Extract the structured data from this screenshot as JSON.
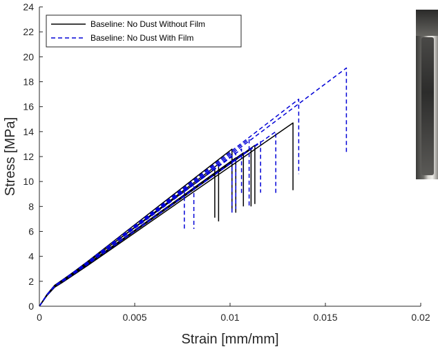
{
  "chart_data": {
    "type": "line",
    "xlabel": "Strain [mm/mm]",
    "ylabel": "Stress [MPa]",
    "xlim": [
      0,
      0.02
    ],
    "ylim": [
      0,
      24
    ],
    "xticks": [
      0,
      0.005,
      0.01,
      0.015,
      0.02
    ],
    "xtick_labels": [
      "0",
      "0.005",
      "0.01",
      "0.015",
      "0.02"
    ],
    "yticks": [
      0,
      2,
      4,
      6,
      8,
      10,
      12,
      14,
      16,
      18,
      20,
      22,
      24
    ],
    "ytick_labels": [
      "0",
      "2",
      "4",
      "6",
      "8",
      "10",
      "12",
      "14",
      "16",
      "18",
      "20",
      "22",
      "24"
    ],
    "grid": false,
    "legend_position": "top-left",
    "series": [
      {
        "name": "Baseline: No Dust Without Film",
        "style": "solid",
        "color": "#000000",
        "curves": [
          {
            "peak_strain": 0.0101,
            "peak_stress": 12.6,
            "drop_stress": 7.7,
            "slope_factor": 1.03
          },
          {
            "peak_strain": 0.0092,
            "peak_stress": 11.0,
            "drop_stress": 7.1,
            "slope_factor": 1.05
          },
          {
            "peak_strain": 0.0094,
            "peak_stress": 11.4,
            "drop_stress": 6.8,
            "slope_factor": 1.01
          },
          {
            "peak_strain": 0.0103,
            "peak_stress": 11.9,
            "drop_stress": 7.5,
            "slope_factor": 0.99
          },
          {
            "peak_strain": 0.0107,
            "peak_stress": 12.3,
            "drop_stress": 8.0,
            "slope_factor": 0.98
          },
          {
            "peak_strain": 0.0111,
            "peak_stress": 12.6,
            "drop_stress": 8.0,
            "slope_factor": 0.97
          },
          {
            "peak_strain": 0.0113,
            "peak_stress": 12.9,
            "drop_stress": 8.2,
            "slope_factor": 0.98
          },
          {
            "peak_strain": 0.0133,
            "peak_stress": 14.7,
            "drop_stress": 9.3,
            "slope_factor": 0.95
          }
        ]
      },
      {
        "name": "Baseline: No Dust With Film",
        "style": "dashed",
        "color": "#0000d6",
        "curves": [
          {
            "peak_strain": 0.0076,
            "peak_stress": 9.3,
            "drop_stress": 6.2,
            "slope_factor": 1.04
          },
          {
            "peak_strain": 0.0081,
            "peak_stress": 9.8,
            "drop_stress": 6.2,
            "slope_factor": 1.03
          },
          {
            "peak_strain": 0.0101,
            "peak_stress": 12.0,
            "drop_stress": 7.4,
            "slope_factor": 1.0
          },
          {
            "peak_strain": 0.0103,
            "peak_stress": 12.3,
            "drop_stress": 7.8,
            "slope_factor": 1.01
          },
          {
            "peak_strain": 0.0106,
            "peak_stress": 12.6,
            "drop_stress": 8.9,
            "slope_factor": 1.0
          },
          {
            "peak_strain": 0.011,
            "peak_stress": 13.4,
            "drop_stress": 8.0,
            "slope_factor": 1.02
          },
          {
            "peak_strain": 0.0116,
            "peak_stress": 13.2,
            "drop_stress": 9.1,
            "slope_factor": 0.99
          },
          {
            "peak_strain": 0.0124,
            "peak_stress": 14.0,
            "drop_stress": 9.0,
            "slope_factor": 0.98
          },
          {
            "peak_strain": 0.0136,
            "peak_stress": 16.6,
            "drop_stress": 10.6,
            "slope_factor": 1.03
          },
          {
            "peak_strain": 0.0161,
            "peak_stress": 19.1,
            "drop_stress": 12.2,
            "slope_factor": 1.02
          }
        ]
      }
    ]
  }
}
